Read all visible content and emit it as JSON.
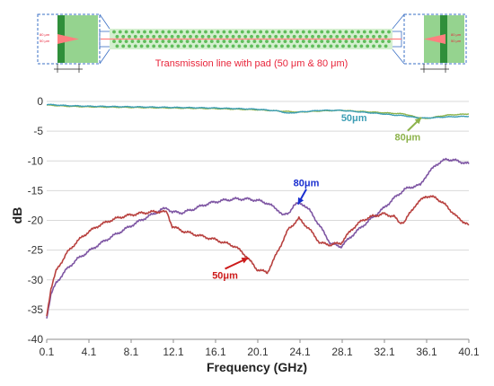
{
  "inset": {
    "caption": "Transmission line with pad (50 μm & 80 μm)",
    "dim_labels": [
      "80 μm",
      "50 μm"
    ],
    "colors": {
      "pad": "#95d38f",
      "pad_dark": "#2f8f3a",
      "dot": "#5fbd5a",
      "trace": "#ff7f7f",
      "frame": "#3a6fc4"
    }
  },
  "chart_data": {
    "type": "line",
    "title": "",
    "xlabel": "Frequency (GHz)",
    "ylabel": "dB",
    "xlim": [
      0.1,
      40.1
    ],
    "ylim": [
      -40,
      0
    ],
    "xticks": [
      0.1,
      4.1,
      8.1,
      12.1,
      16.1,
      20.1,
      24.1,
      28.1,
      32.1,
      36.1,
      40.1
    ],
    "yticks": [
      0,
      -5,
      -10,
      -15,
      -20,
      -25,
      -30,
      -35,
      -40
    ],
    "grid": "horizontal",
    "series": [
      {
        "id": "s21_80",
        "color": "#8db34c",
        "width": 1.4,
        "x": [
          0.1,
          2,
          4,
          8,
          12,
          16,
          20,
          22,
          24,
          26,
          28,
          30,
          32,
          34,
          35,
          36,
          37,
          38,
          40.1
        ],
        "y": [
          -0.6,
          -0.8,
          -0.9,
          -1.0,
          -1.1,
          -1.2,
          -1.4,
          -1.6,
          -1.8,
          -1.6,
          -1.5,
          -1.7,
          -1.9,
          -2.1,
          -2.6,
          -2.9,
          -2.6,
          -2.3,
          -2.1
        ]
      },
      {
        "id": "s21_50",
        "color": "#3d9eb5",
        "width": 1.4,
        "x": [
          0.1,
          2,
          4,
          8,
          12,
          16,
          20,
          22,
          23,
          24,
          26,
          28,
          30,
          32,
          33,
          34,
          35,
          36,
          37,
          38,
          40.1
        ],
        "y": [
          -0.5,
          -0.7,
          -0.8,
          -0.9,
          -1.0,
          -1.1,
          -1.3,
          -1.6,
          -2.0,
          -1.8,
          -1.5,
          -1.5,
          -1.8,
          -2.1,
          -2.3,
          -2.4,
          -2.7,
          -2.8,
          -2.7,
          -2.6,
          -2.5
        ]
      },
      {
        "id": "s11_80",
        "color": "#7e56a3",
        "width": 1.6,
        "x": [
          0.1,
          0.5,
          1,
          2,
          3,
          4,
          5,
          6,
          7,
          8,
          9,
          10,
          11,
          11.5,
          12,
          13,
          14,
          15,
          16,
          17,
          18,
          19,
          20,
          21,
          22,
          22.5,
          23,
          23.5,
          24,
          24.5,
          25,
          26,
          27,
          28,
          29,
          30,
          31,
          32,
          33,
          34,
          35,
          35.5,
          36,
          37,
          38,
          39,
          40.1
        ],
        "y": [
          -36.3,
          -32.5,
          -30.5,
          -28.2,
          -26.5,
          -25.3,
          -24.1,
          -23.0,
          -22.0,
          -21.0,
          -20.0,
          -19.1,
          -18.2,
          -17.9,
          -18.6,
          -18.7,
          -18.1,
          -17.4,
          -16.9,
          -16.6,
          -16.4,
          -16.4,
          -16.6,
          -17.1,
          -18.2,
          -19.2,
          -18.8,
          -17.5,
          -17.1,
          -17.4,
          -18.3,
          -21.0,
          -23.9,
          -24.4,
          -22.6,
          -21.0,
          -19.5,
          -18.0,
          -16.3,
          -14.8,
          -14.2,
          -14.1,
          -12.6,
          -10.6,
          -9.7,
          -10.0,
          -10.5
        ]
      },
      {
        "id": "s11_50",
        "color": "#b8413f",
        "width": 1.6,
        "x": [
          0.1,
          0.5,
          1,
          2,
          3,
          4,
          5,
          6,
          7,
          8,
          9,
          10,
          11,
          11.5,
          12,
          13,
          14,
          16,
          18,
          19,
          20,
          21,
          22,
          23,
          24,
          25,
          26,
          27,
          28,
          29,
          30,
          31,
          32,
          33,
          33.5,
          34,
          35,
          36,
          37,
          38,
          39,
          40.1
        ],
        "y": [
          -36.0,
          -31.5,
          -28.5,
          -25.5,
          -23.5,
          -22.0,
          -20.9,
          -20.1,
          -19.5,
          -19.1,
          -18.8,
          -18.6,
          -18.5,
          -18.7,
          -21.0,
          -21.8,
          -22.3,
          -23.2,
          -24.4,
          -26.0,
          -28.2,
          -28.8,
          -25.2,
          -21.5,
          -19.7,
          -21.5,
          -23.8,
          -24.1,
          -23.8,
          -21.5,
          -20.0,
          -19.3,
          -18.9,
          -19.3,
          -20.4,
          -20.2,
          -17.5,
          -15.9,
          -16.2,
          -17.6,
          -19.5,
          -20.8
        ]
      }
    ],
    "annotations": [
      {
        "text": "50μm",
        "color": "#3d9eb5",
        "x": 28.0,
        "y": -3.3
      },
      {
        "text": "80μm",
        "color": "#8db34c",
        "x": 34.3,
        "y": -6.6,
        "arrow_to": {
          "x": 35.6,
          "y": -2.7
        },
        "text_anchor": "middle"
      },
      {
        "text": "80μm",
        "color": "#1a2fd0",
        "x": 24.7,
        "y": -14.3,
        "arrow_to": {
          "x": 23.9,
          "y": -17.3
        },
        "text_anchor": "middle"
      },
      {
        "text": "50μm",
        "color": "#cc1a1a",
        "x": 17.0,
        "y": -29.8,
        "arrow_to": {
          "x": 19.2,
          "y": -26.3
        },
        "text_anchor": "middle"
      }
    ]
  }
}
